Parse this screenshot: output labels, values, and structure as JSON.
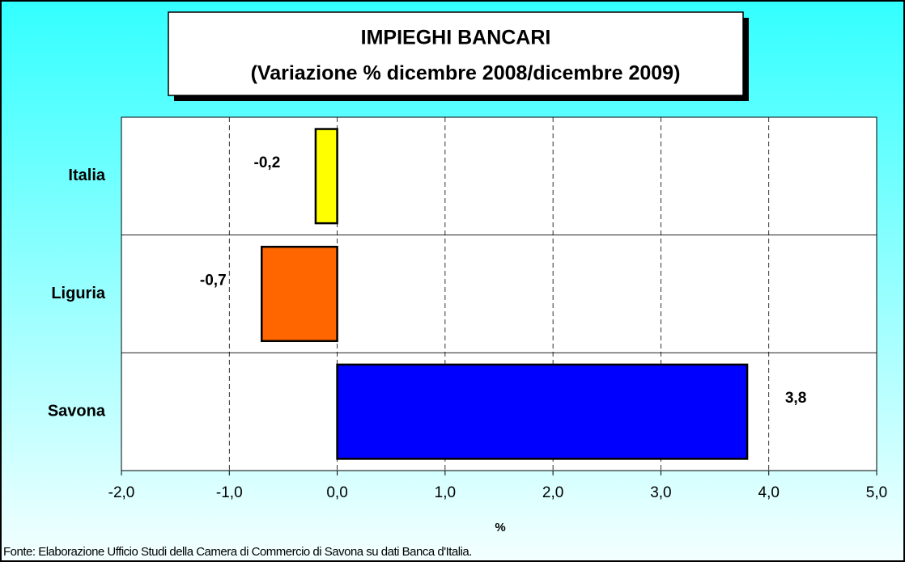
{
  "chart_data": {
    "type": "barh",
    "title": "IMPIEGHI BANCARI",
    "subtitle": "(Variazione % dicembre 2008/dicembre 2009)",
    "categories": [
      "Italia",
      "Liguria",
      "Savona"
    ],
    "values": [
      -0.2,
      -0.7,
      3.8
    ],
    "value_labels": [
      "-0,2",
      "-0,7",
      "3,8"
    ],
    "colors": [
      "#ffff00",
      "#ff6600",
      "#0000ff"
    ],
    "xlabel": "%",
    "xlim": [
      -2,
      5
    ],
    "xticks": [
      {
        "value": -2,
        "label": "-2,0"
      },
      {
        "value": -1,
        "label": "-1,0"
      },
      {
        "value": 0,
        "label": "0,0"
      },
      {
        "value": 1,
        "label": "1,0"
      },
      {
        "value": 2,
        "label": "2,0"
      },
      {
        "value": 3,
        "label": "3,0"
      },
      {
        "value": 4,
        "label": "4,0"
      },
      {
        "value": 5,
        "label": "5,0"
      }
    ],
    "grid": true,
    "source": "Fonte: Elaborazione Ufficio Studi della Camera di Commercio di Savona su dati Banca d'Italia."
  }
}
